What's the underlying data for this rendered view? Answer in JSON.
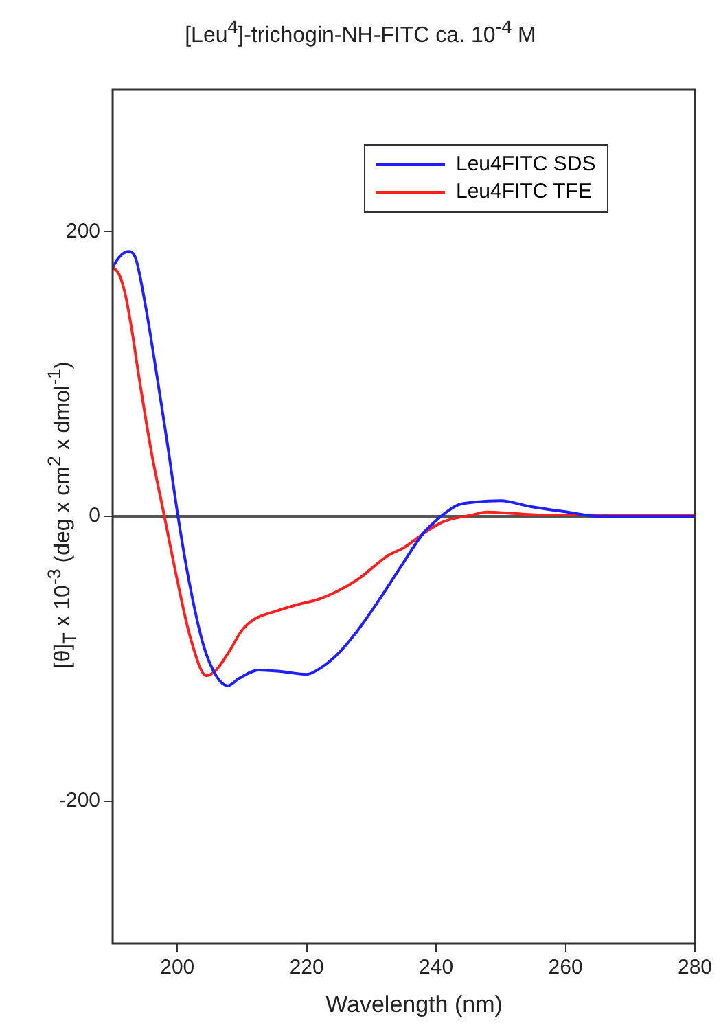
{
  "chart_data": {
    "type": "line",
    "title": "[Leu$^{4}$]-trichogin-NH-FITC ca. 10$^{-4}$ M",
    "xlabel": "Wavelength (nm)",
    "ylabel": "[θ]$_{T}$ x 10$^{-3}$ (deg x cm$^{2}$ x dmol$^{-1}$)",
    "xlim": [
      190,
      280
    ],
    "xticks": [
      200,
      220,
      240,
      260,
      280
    ],
    "ylim": [
      -300,
      300
    ],
    "yticks": [
      -200,
      0,
      200
    ],
    "grid": false,
    "legend": "top right",
    "marker": "none",
    "line_style": "solid",
    "ref_lines": [
      {
        "axis": "y",
        "value": 0,
        "color": "#555555"
      }
    ],
    "series": [
      {
        "name": "Leu4FITC SDS",
        "color": "#1f1fff",
        "x": [
          190,
          191,
          192.4,
          193.5,
          195,
          196.8,
          198.5,
          200.1,
          202,
          204,
          206,
          207.8,
          209.5,
          212.6,
          216,
          220,
          222,
          224.5,
          227.4,
          231,
          234.6,
          238,
          240,
          241.9,
          243.4,
          246,
          250,
          254.4,
          260.3,
          265.4,
          270,
          275,
          280
        ],
        "values": [
          175,
          182,
          186,
          182,
          150,
          100,
          50,
          0,
          -50,
          -90,
          -112,
          -119,
          -114,
          -108,
          -109,
          -111,
          -107,
          -98,
          -83,
          -60,
          -35,
          -12,
          -3,
          4,
          8,
          10,
          11,
          7,
          3,
          0,
          0,
          0,
          0
        ]
      },
      {
        "name": "Leu4FITC TFE",
        "color": "#ff2020",
        "x": [
          190,
          191,
          192,
          193,
          194,
          196,
          198,
          200,
          202,
          204.5,
          206,
          208,
          210,
          212,
          215,
          218.6,
          222,
          225,
          228,
          232.4,
          235,
          238.4,
          241,
          245.6,
          247.8,
          252,
          255.9,
          262,
          270,
          275,
          280
        ],
        "values": [
          175,
          170,
          155,
          130,
          100,
          45,
          0,
          -45,
          -85,
          -112,
          -108,
          -95,
          -80,
          -72,
          -67,
          -62,
          -58,
          -52,
          -44,
          -28,
          -22,
          -11,
          -4,
          1,
          3,
          2,
          1,
          1,
          1,
          1,
          1
        ]
      }
    ]
  }
}
